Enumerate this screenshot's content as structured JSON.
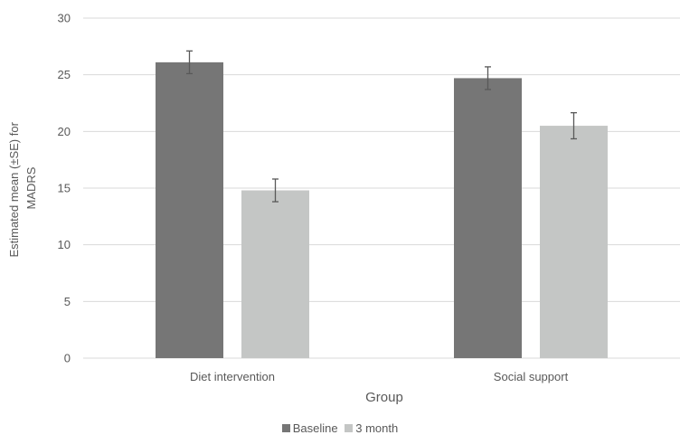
{
  "chart_data": {
    "type": "bar",
    "categories": [
      "Diet intervention",
      "Social support"
    ],
    "series": [
      {
        "name": "Baseline",
        "values": [
          26.1,
          24.7
        ],
        "error": [
          1.0,
          1.0
        ],
        "color": "#767676"
      },
      {
        "name": "3 month",
        "values": [
          14.8,
          20.5
        ],
        "error": [
          1.0,
          1.15
        ],
        "color": "#c4c6c5"
      }
    ],
    "title": "",
    "xlabel": "Group",
    "ylabel_lines": [
      "Estimated mean (±SE) for",
      "MADRS"
    ],
    "ylim": [
      0,
      30
    ],
    "yticks": [
      0,
      5,
      10,
      15,
      20,
      25,
      30
    ],
    "grid": true,
    "legend_position": "bottom",
    "gridline_color": "#d9d9d9",
    "error_bar_color": "#595959"
  }
}
